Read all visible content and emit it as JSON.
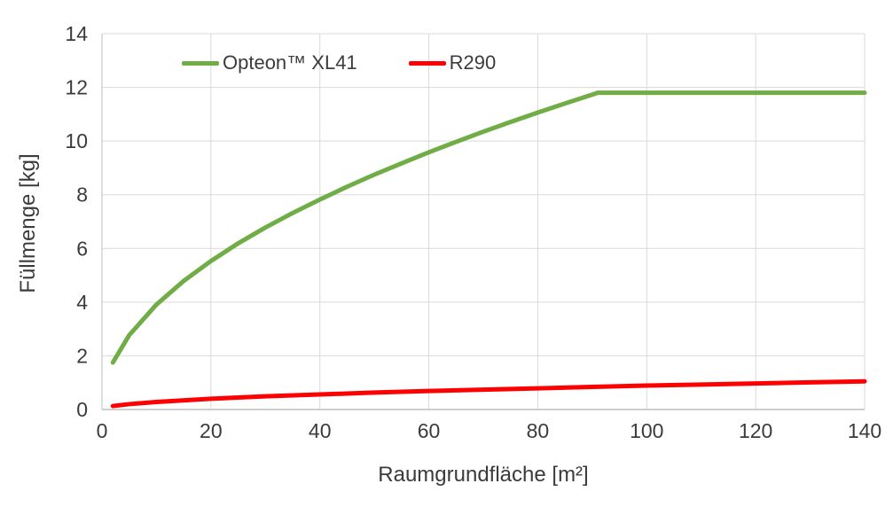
{
  "chart_data": {
    "type": "line",
    "title": "",
    "xlabel": "Raumgrundfläche [m²]",
    "ylabel": "Füllmenge [kg]",
    "xlim": [
      0,
      140
    ],
    "ylim": [
      0,
      14
    ],
    "x_ticks": [
      0,
      20,
      40,
      60,
      80,
      100,
      120,
      140
    ],
    "y_ticks": [
      0,
      2,
      4,
      6,
      8,
      10,
      12,
      14
    ],
    "grid": "both",
    "grid_color": "#d9d9d9",
    "axis_line_color": "#bfbfbf",
    "tick_label_color": "#3b3b3b",
    "legend_position": "top-left-inside",
    "series": [
      {
        "name": "Opteon™ XL41",
        "color": "#70ad47",
        "line_width": 5,
        "x": [
          2,
          5,
          10,
          15,
          20,
          25,
          30,
          35,
          40,
          45,
          50,
          55,
          60,
          65,
          70,
          75,
          80,
          85,
          90,
          91,
          100,
          110,
          120,
          130,
          140
        ],
        "y": [
          1.75,
          2.77,
          3.91,
          4.79,
          5.53,
          6.19,
          6.78,
          7.32,
          7.82,
          8.3,
          8.75,
          9.17,
          9.58,
          9.97,
          10.35,
          10.71,
          11.06,
          11.4,
          11.73,
          11.8,
          11.8,
          11.8,
          11.8,
          11.8,
          11.8
        ]
      },
      {
        "name": "R290",
        "color": "#ff0000",
        "line_width": 5,
        "x": [
          2,
          5,
          10,
          20,
          30,
          40,
          50,
          60,
          70,
          80,
          90,
          100,
          110,
          120,
          130,
          140
        ],
        "y": [
          0.13,
          0.2,
          0.28,
          0.4,
          0.49,
          0.56,
          0.63,
          0.69,
          0.74,
          0.79,
          0.84,
          0.89,
          0.93,
          0.97,
          1.01,
          1.05
        ]
      }
    ]
  }
}
